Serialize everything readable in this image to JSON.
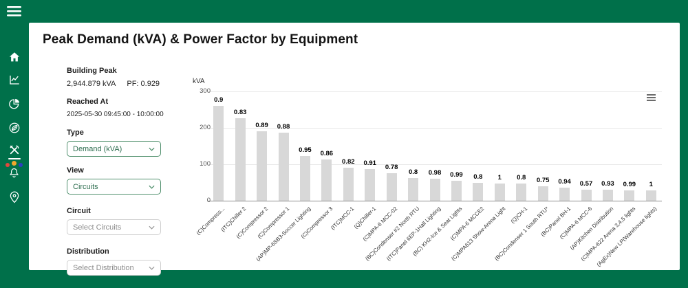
{
  "colors": {
    "brand_green": "#00704A",
    "select_green_border": "#4f8f6c",
    "select_green_text": "#2e6e50",
    "bar_fill": "#d8d8d8",
    "notification_dot_red": "#e2483d",
    "notification_dot_orange": "#f0a72c",
    "notification_dot_blue": "#2d3fc0"
  },
  "sidebar": {
    "icons": [
      "menu",
      "home",
      "line-chart",
      "pie-chart",
      "leaf",
      "tools",
      "bell",
      "location-pin"
    ]
  },
  "header": {
    "title": "Peak Demand (kVA) & Power Factor by Equipment"
  },
  "controls": {
    "building_peak_label": "Building Peak",
    "building_peak_value": "2,944.879 kVA",
    "pf_value": "PF: 0.929",
    "reached_at_label": "Reached At",
    "reached_at_value": "2025-05-30 09:45:00 - 10:00:00",
    "type_label": "Type",
    "type_value": "Demand (kVA)",
    "view_label": "View",
    "view_value": "Circuits",
    "circuit_label": "Circuit",
    "circuit_placeholder": "Select Circuits",
    "distribution_label": "Distribution",
    "distribution_placeholder": "Select Distribution"
  },
  "chart_data": {
    "type": "bar",
    "y_axis_title": "kVA",
    "ylim": [
      0,
      300
    ],
    "yticks": [
      0,
      100,
      200,
      300
    ],
    "grid": true,
    "bar_color": "#d8d8d8",
    "categories": [
      "(C)Compress...",
      "(ITC)Chiller 2",
      "(C)Compressor 2",
      "(C)Compressor 1",
      "(AP)MP-6SB3-Soccer Lighting",
      "(C)Compressor 3",
      "(ITC)MCC-1",
      "(Q)Chiller-1",
      "(C)MPA-6 MCC-02",
      "(BC)Condenser #2 North RTU",
      "(ITC)Panel 6EP-1Hall Lighting",
      "(BC) KH2-Ice & Seat Lights",
      "(C)MPA-6 MCCE2",
      "(C)MPA613 Show-Arena Light",
      "(Q)CH-1",
      "(BC)Condenser 1 South RTU*",
      "(BC)Panel BH-1",
      "(C)MPA-6 MCC-6",
      "(AP)Kitchen Distribution",
      "(C)MPA-622 Arena 3,4,5 lights",
      "(AgEx)New LP(Warehouse lights)"
    ],
    "series": [
      {
        "name": "Peak Demand (kVA)",
        "values": [
          261,
          226,
          190,
          186,
          122,
          114,
          90,
          86,
          75,
          62,
          60,
          54,
          50,
          48,
          48,
          40,
          36,
          30,
          31,
          28,
          29
        ]
      },
      {
        "name": "Power Factor",
        "role": "bar-top-labels",
        "values": [
          "0.9",
          "0.83",
          "0.89",
          "0.88",
          "0.95",
          "0.86",
          "0.82",
          "0.91",
          "0.78",
          "0.8",
          "0.98",
          "0.99",
          "0.8",
          "1",
          "0.8",
          "0.75",
          "0.94",
          "0.57",
          "0.93",
          "0.99",
          "1"
        ]
      }
    ]
  }
}
